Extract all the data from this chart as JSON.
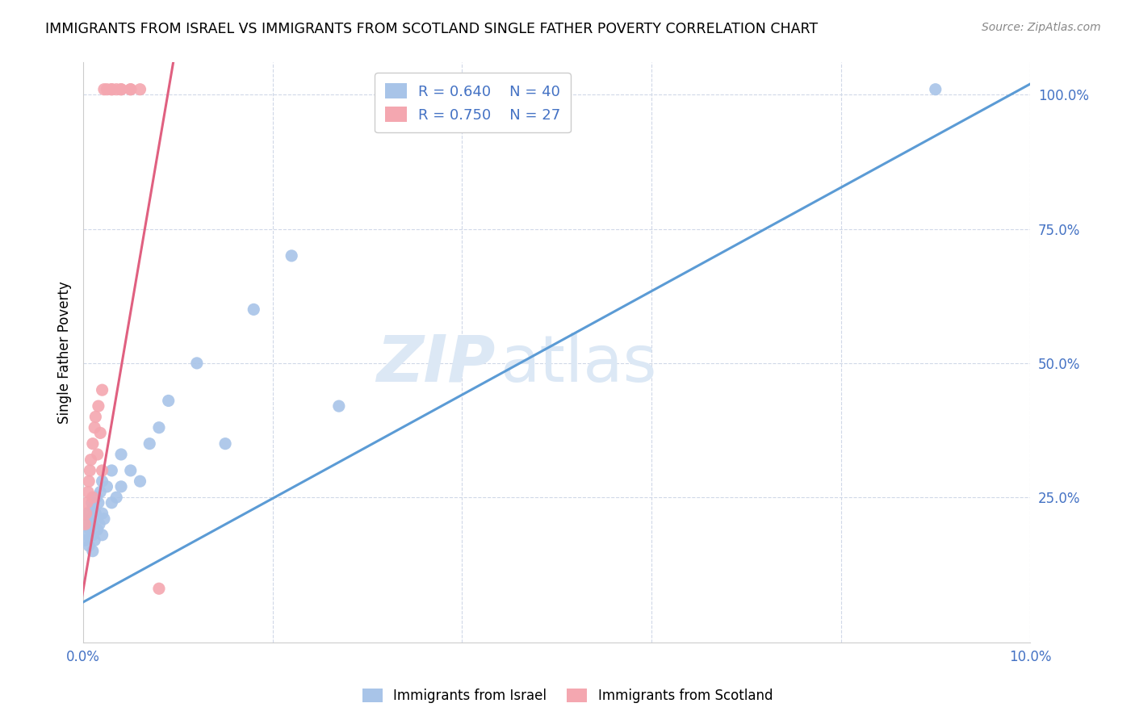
{
  "title": "IMMIGRANTS FROM ISRAEL VS IMMIGRANTS FROM SCOTLAND SINGLE FATHER POVERTY CORRELATION CHART",
  "source": "Source: ZipAtlas.com",
  "ylabel": "Single Father Poverty",
  "xlim": [
    0.0,
    0.1
  ],
  "ylim": [
    -0.02,
    1.06
  ],
  "xticks": [
    0.0,
    0.02,
    0.04,
    0.06,
    0.08,
    0.1
  ],
  "xtick_labels": [
    "0.0%",
    "",
    "",
    "",
    "",
    "10.0%"
  ],
  "yticks_right": [
    0.25,
    0.5,
    0.75,
    1.0
  ],
  "ytick_labels_right": [
    "25.0%",
    "50.0%",
    "75.0%",
    "100.0%"
  ],
  "blue_color": "#a8c4e8",
  "blue_line_color": "#5b9bd5",
  "pink_color": "#f4a7b0",
  "pink_line_color": "#e06080",
  "legend_text_color": "#4472c4",
  "axis_color": "#4472c4",
  "grid_color": "#d0d8e8",
  "watermark_color": "#dce8f5",
  "israel_x": [
    0.0002,
    0.0003,
    0.0004,
    0.0005,
    0.0006,
    0.0007,
    0.0008,
    0.0009,
    0.001,
    0.001,
    0.001,
    0.001,
    0.0012,
    0.0013,
    0.0014,
    0.0015,
    0.0016,
    0.0017,
    0.0018,
    0.002,
    0.002,
    0.002,
    0.0022,
    0.0025,
    0.003,
    0.003,
    0.0035,
    0.004,
    0.004,
    0.005,
    0.006,
    0.007,
    0.008,
    0.009,
    0.012,
    0.015,
    0.018,
    0.022,
    0.027,
    0.09
  ],
  "israel_y": [
    0.17,
    0.2,
    0.18,
    0.22,
    0.16,
    0.19,
    0.21,
    0.24,
    0.15,
    0.18,
    0.2,
    0.23,
    0.17,
    0.22,
    0.25,
    0.19,
    0.24,
    0.2,
    0.26,
    0.18,
    0.22,
    0.28,
    0.21,
    0.27,
    0.24,
    0.3,
    0.25,
    0.27,
    0.33,
    0.3,
    0.28,
    0.35,
    0.38,
    0.43,
    0.5,
    0.35,
    0.6,
    0.7,
    0.42,
    1.01
  ],
  "scotland_x": [
    0.0002,
    0.0003,
    0.0004,
    0.0005,
    0.0006,
    0.0007,
    0.0008,
    0.001,
    0.001,
    0.0012,
    0.0013,
    0.0015,
    0.0016,
    0.0018,
    0.002,
    0.002,
    0.0022,
    0.0025,
    0.003,
    0.003,
    0.0035,
    0.004,
    0.004,
    0.005,
    0.005,
    0.006,
    0.008
  ],
  "scotland_y": [
    0.2,
    0.22,
    0.24,
    0.26,
    0.28,
    0.3,
    0.32,
    0.25,
    0.35,
    0.38,
    0.4,
    0.33,
    0.42,
    0.37,
    0.3,
    0.45,
    1.01,
    1.01,
    1.01,
    1.01,
    1.01,
    1.01,
    1.01,
    1.01,
    1.01,
    1.01,
    0.08
  ],
  "blue_trend_x": [
    0.0,
    0.1
  ],
  "blue_trend_y": [
    0.055,
    1.02
  ],
  "pink_trend_x": [
    -0.001,
    0.0095
  ],
  "pink_trend_y": [
    -0.025,
    1.06
  ]
}
